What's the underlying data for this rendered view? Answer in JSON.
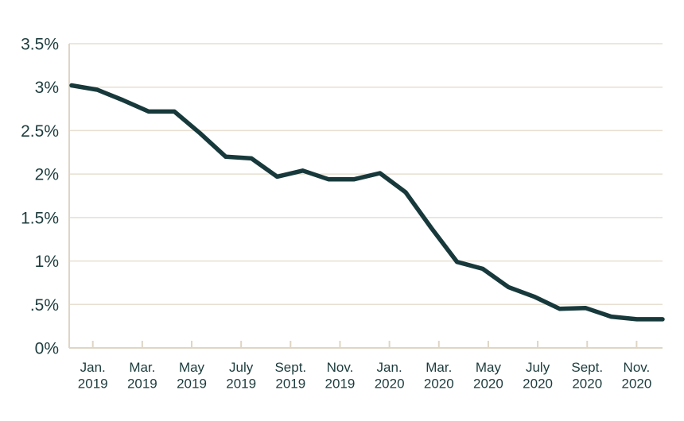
{
  "chart": {
    "background": "#ffffff",
    "line_color": "#17393b",
    "grid_color": "#e7dfd1",
    "axis_color": "#ded5c5",
    "text_color": "#1d3c3d"
  },
  "chart_data": {
    "type": "line",
    "title": "",
    "xlabel": "",
    "ylabel": "",
    "unit": "%",
    "ylim": [
      0,
      3.5
    ],
    "grid": "horizontal",
    "legend": "none",
    "y_tick_labels": [
      "3.5%",
      "3%",
      "2.5%",
      "2%",
      "1.5%",
      "1%",
      ".5%",
      "0%"
    ],
    "x_tick_labels": [
      {
        "month": "Jan.",
        "year": "2019"
      },
      {
        "month": "Mar.",
        "year": "2019"
      },
      {
        "month": "May",
        "year": "2019"
      },
      {
        "month": "July",
        "year": "2019"
      },
      {
        "month": "Sept.",
        "year": "2019"
      },
      {
        "month": "Nov.",
        "year": "2019"
      },
      {
        "month": "Jan.",
        "year": "2020"
      },
      {
        "month": "Mar.",
        "year": "2020"
      },
      {
        "month": "May",
        "year": "2020"
      },
      {
        "month": "July",
        "year": "2020"
      },
      {
        "month": "Sept.",
        "year": "2020"
      },
      {
        "month": "Nov.",
        "year": "2020"
      }
    ],
    "x": [
      "Jan. 2019",
      "Feb. 2019",
      "Mar. 2019",
      "Apr. 2019",
      "May 2019",
      "June 2019",
      "July 2019",
      "Aug. 2019",
      "Sept. 2019",
      "Oct. 2019",
      "Nov. 2019",
      "Dec. 2019",
      "Jan. 2020",
      "Feb. 2020",
      "Mar. 2020",
      "Apr. 2020",
      "May 2020",
      "June 2020",
      "July 2020",
      "Aug. 2020",
      "Sept. 2020",
      "Oct. 2020",
      "Nov. 2020",
      "Dec. 2020"
    ],
    "values": [
      3.02,
      2.97,
      2.85,
      2.72,
      2.72,
      2.47,
      2.2,
      2.18,
      1.97,
      2.04,
      1.94,
      1.94,
      2.01,
      1.79,
      1.38,
      0.99,
      0.91,
      0.7,
      0.59,
      0.45,
      0.46,
      0.36,
      0.33,
      0.33
    ]
  }
}
